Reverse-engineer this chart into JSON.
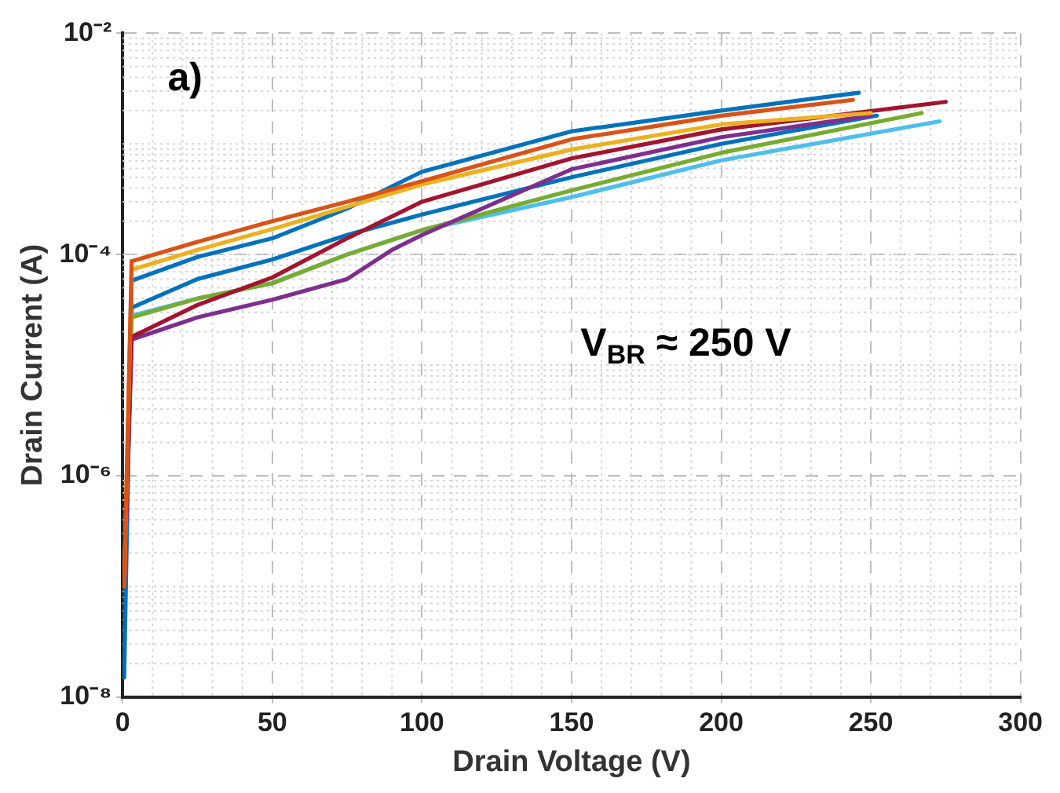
{
  "chart_data": {
    "type": "line",
    "xlabel": "Drain Voltage (V)",
    "ylabel": "Drain Current (A)",
    "annotations": [
      "a)",
      "V$_{BR}$ ≈ 250 V"
    ],
    "series": [
      {
        "color": "#d95319",
        "x": [
          0.5,
          3,
          25,
          50,
          75,
          100,
          150,
          200,
          244
        ],
        "values": [
          1e-07,
          8.7e-05,
          0.00013,
          0.0002,
          0.0003,
          0.00046,
          0.0011,
          0.0018,
          0.0025
        ]
      },
      {
        "color": "#edb120",
        "x": [
          0.5,
          3,
          25,
          50,
          75,
          100,
          150,
          200,
          250
        ],
        "values": [
          1e-07,
          7.3e-05,
          0.00011,
          0.00017,
          0.00027,
          0.00043,
          0.00089,
          0.0015,
          0.0019
        ]
      },
      {
        "color": "#a2142f",
        "x": [
          0.5,
          3,
          25,
          50,
          75,
          100,
          150,
          200,
          275
        ],
        "values": [
          1e-07,
          1.8e-05,
          3.5e-05,
          6.2e-05,
          0.00014,
          0.0003,
          0.00074,
          0.00135,
          0.0024
        ]
      },
      {
        "color": "#7e2f8e",
        "x": [
          0.5,
          3,
          25,
          50,
          75,
          90,
          100,
          150,
          200,
          250
        ],
        "values": [
          1e-07,
          1.7e-05,
          2.7e-05,
          3.9e-05,
          6e-05,
          0.00011,
          0.00015,
          0.00059,
          0.00115,
          0.0018
        ]
      },
      {
        "color": "#77ac30",
        "x": [
          0.5,
          3,
          25,
          50,
          75,
          100,
          150,
          200,
          267
        ],
        "values": [
          1e-07,
          2.7e-05,
          4e-05,
          5.5e-05,
          0.0001,
          0.000166,
          0.00038,
          0.00083,
          0.0019
        ]
      },
      {
        "color": "#4dbeee",
        "x": [
          0.5,
          3,
          25,
          50,
          75,
          100,
          150,
          200,
          273
        ],
        "values": [
          1e-07,
          2.8e-05,
          4e-05,
          5.5e-05,
          0.0001,
          0.000166,
          0.00033,
          0.00071,
          0.0016
        ]
      },
      {
        "color": "#0072bd",
        "x": [
          0.5,
          3,
          25,
          50,
          75,
          100,
          150,
          200,
          252
        ],
        "values": [
          1e-07,
          3.3e-05,
          6e-05,
          9e-05,
          0.00015,
          0.00023,
          0.0005,
          0.001,
          0.0018
        ]
      },
      {
        "color": "#0072bd",
        "x": [
          0.5,
          3,
          25,
          50,
          75,
          100,
          150,
          200,
          246
        ],
        "values": [
          1.5e-08,
          5.8e-05,
          9.5e-05,
          0.00014,
          0.00026,
          0.00056,
          0.0013,
          0.002,
          0.0029
        ]
      }
    ],
    "log": "y",
    "grid": true,
    "legend": false,
    "marker": "none",
    "line_style": "solid",
    "xlim": [
      0,
      300
    ],
    "xticks": [
      0,
      50,
      100,
      150,
      200,
      250,
      300
    ],
    "ylim": [
      1e-08,
      0.01
    ],
    "yticks": [
      {
        "value": 1e-08,
        "label": "10⁻⁸"
      },
      {
        "value": 1e-06,
        "label": "10⁻⁶"
      },
      {
        "value": 0.0001,
        "label": "10⁻⁴"
      },
      {
        "value": 0.01,
        "label": "10⁻²"
      }
    ]
  }
}
